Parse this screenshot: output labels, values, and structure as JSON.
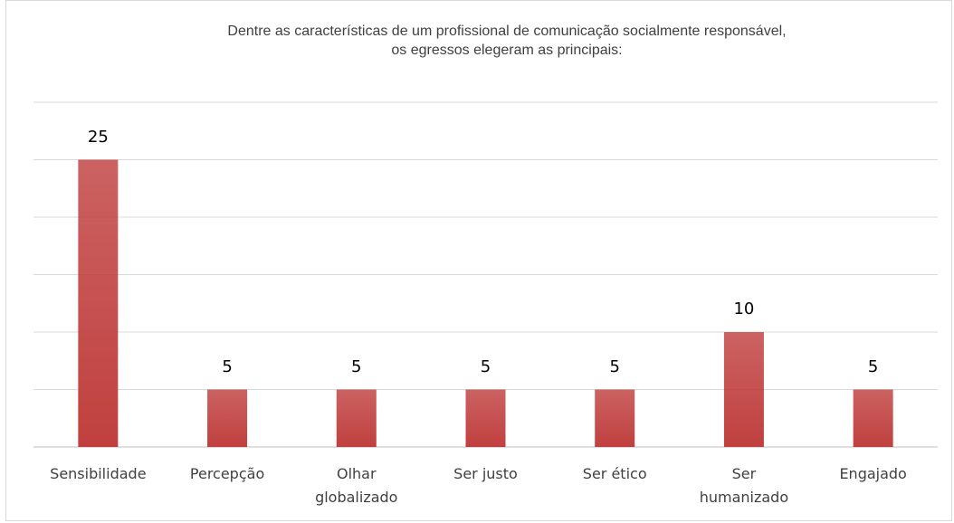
{
  "chart_data": {
    "type": "bar",
    "title": [
      "Dentre as características de um profissional de comunicação socialmente responsável,",
      "os egressos elegeram as principais:"
    ],
    "categories": [
      "Sensibilidade",
      "Percepção",
      "Olhar globalizado",
      "Ser justo",
      "Ser ético",
      "Ser humanizado",
      "Engajado"
    ],
    "values": [
      25,
      5,
      5,
      5,
      5,
      10,
      5
    ],
    "color": "#c0403f",
    "ylim": [
      0,
      30
    ],
    "yticks": [
      0,
      5,
      10,
      15,
      20,
      25,
      30
    ],
    "grid": true
  }
}
